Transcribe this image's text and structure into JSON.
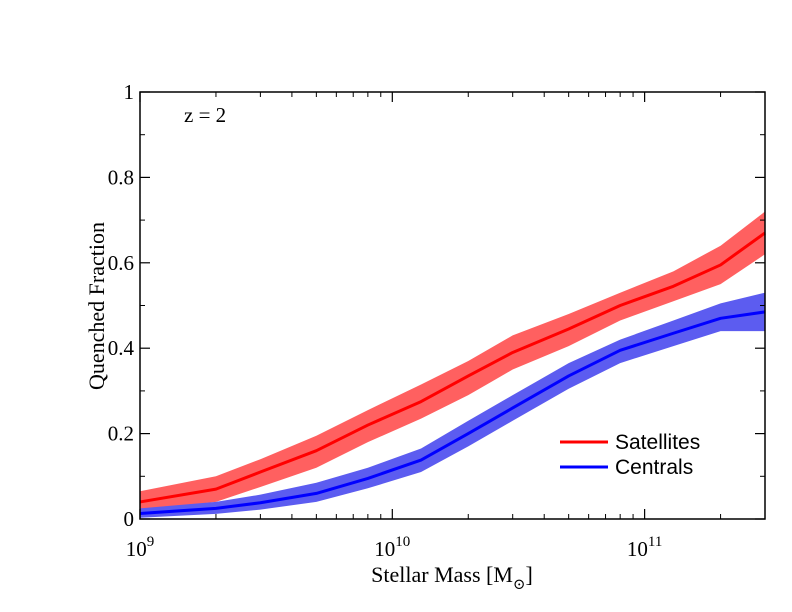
{
  "chart_data": {
    "type": "line",
    "title": "",
    "annotation": "z = 2",
    "xlabel": "Stellar Mass [M",
    "xlabel_sub": "⊙",
    "xlabel_close": "]",
    "ylabel": "Quenched Fraction",
    "xscale": "log",
    "xlim": [
      1000000000.0,
      300000000000.0
    ],
    "ylim": [
      0,
      1
    ],
    "grid": false,
    "legend_position": "bottom-right",
    "x_ticks": [
      {
        "value": 1000000000.0,
        "base": "10",
        "exp": "9"
      },
      {
        "value": 10000000000.0,
        "base": "10",
        "exp": "10"
      },
      {
        "value": 100000000000.0,
        "base": "10",
        "exp": "11"
      }
    ],
    "y_ticks": [
      {
        "value": 0,
        "label": "0"
      },
      {
        "value": 0.2,
        "label": "0.2"
      },
      {
        "value": 0.4,
        "label": "0.4"
      },
      {
        "value": 0.6,
        "label": "0.6"
      },
      {
        "value": 0.8,
        "label": "0.8"
      },
      {
        "value": 1,
        "label": "1"
      }
    ],
    "x": [
      1000000000.0,
      2000000000.0,
      3000000000.0,
      5000000000.0,
      8000000000.0,
      13000000000.0,
      20000000000.0,
      30000000000.0,
      50000000000.0,
      80000000000.0,
      130000000000.0,
      200000000000.0,
      300000000000.0
    ],
    "series": [
      {
        "name": "Satellites",
        "color": "#ff0000",
        "band_color": "#ff6060",
        "values": [
          0.04,
          0.07,
          0.11,
          0.16,
          0.22,
          0.275,
          0.335,
          0.39,
          0.445,
          0.5,
          0.545,
          0.595,
          0.67
        ],
        "lower": [
          0.02,
          0.04,
          0.075,
          0.12,
          0.18,
          0.235,
          0.29,
          0.35,
          0.405,
          0.465,
          0.51,
          0.55,
          0.62
        ],
        "upper": [
          0.065,
          0.1,
          0.14,
          0.195,
          0.255,
          0.315,
          0.37,
          0.43,
          0.48,
          0.53,
          0.58,
          0.64,
          0.72
        ]
      },
      {
        "name": "Centrals",
        "color": "#0000ff",
        "band_color": "#5c5cf0",
        "values": [
          0.013,
          0.025,
          0.038,
          0.06,
          0.095,
          0.138,
          0.2,
          0.26,
          0.335,
          0.395,
          0.435,
          0.47,
          0.485
        ],
        "lower": [
          0.003,
          0.012,
          0.022,
          0.04,
          0.072,
          0.11,
          0.17,
          0.23,
          0.305,
          0.365,
          0.405,
          0.44,
          0.44
        ],
        "upper": [
          0.025,
          0.04,
          0.057,
          0.085,
          0.12,
          0.165,
          0.23,
          0.29,
          0.365,
          0.42,
          0.465,
          0.505,
          0.53
        ]
      }
    ]
  }
}
